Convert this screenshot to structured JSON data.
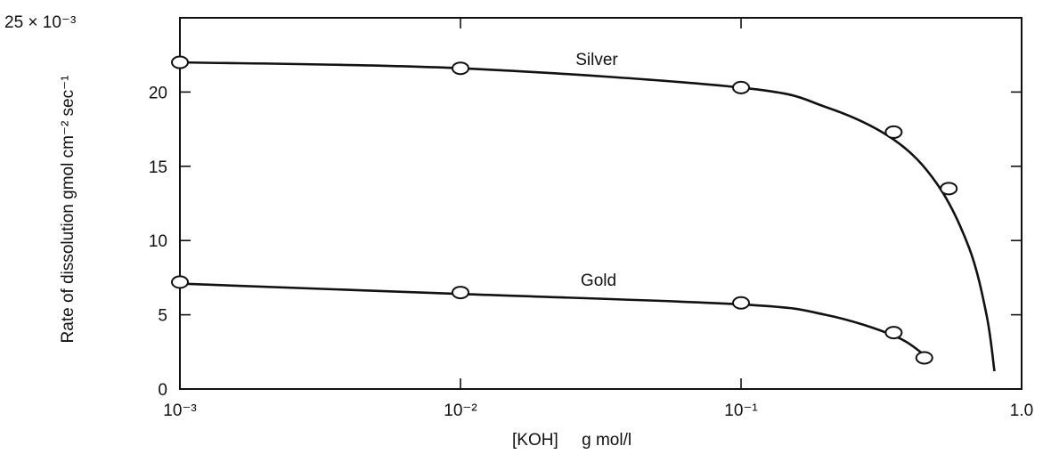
{
  "chart_data": {
    "type": "line",
    "title": "",
    "xlabel": "[KOH]     g mol/l",
    "ylabel": "Rate of dissolution gmol cm⁻² sec⁻¹",
    "y_multiplier_label": "25  ×  10⁻³",
    "x_scale": "log",
    "xlim": [
      0.001,
      1.0
    ],
    "ylim": [
      0,
      25
    ],
    "x_ticks": [
      0.001,
      0.01,
      0.1,
      1.0
    ],
    "x_tick_labels": [
      "10⁻³",
      "10⁻²",
      "10⁻¹",
      "1.0"
    ],
    "y_ticks": [
      0,
      5,
      10,
      15,
      20
    ],
    "y_tick_labels": [
      "0",
      "5",
      "10",
      "15",
      "20"
    ],
    "grid": false,
    "series": [
      {
        "name": "Silver",
        "points": [
          {
            "x": 0.001,
            "y": 22.0
          },
          {
            "x": 0.01,
            "y": 21.6
          },
          {
            "x": 0.1,
            "y": 20.3
          },
          {
            "x": 0.35,
            "y": 17.3
          },
          {
            "x": 0.55,
            "y": 13.5
          }
        ],
        "curve": [
          {
            "x": 0.001,
            "y": 22.0
          },
          {
            "x": 0.01,
            "y": 21.6
          },
          {
            "x": 0.1,
            "y": 20.3
          },
          {
            "x": 0.2,
            "y": 19.0
          },
          {
            "x": 0.35,
            "y": 16.8
          },
          {
            "x": 0.5,
            "y": 13.8
          },
          {
            "x": 0.65,
            "y": 9.5
          },
          {
            "x": 0.75,
            "y": 5.0
          },
          {
            "x": 0.8,
            "y": 1.2
          }
        ]
      },
      {
        "name": "Gold",
        "points": [
          {
            "x": 0.001,
            "y": 7.2
          },
          {
            "x": 0.01,
            "y": 6.5
          },
          {
            "x": 0.1,
            "y": 5.8
          },
          {
            "x": 0.35,
            "y": 3.8
          },
          {
            "x": 0.45,
            "y": 2.1
          }
        ],
        "curve": [
          {
            "x": 0.001,
            "y": 7.1
          },
          {
            "x": 0.01,
            "y": 6.4
          },
          {
            "x": 0.1,
            "y": 5.7
          },
          {
            "x": 0.2,
            "y": 5.0
          },
          {
            "x": 0.35,
            "y": 3.6
          },
          {
            "x": 0.45,
            "y": 2.3
          }
        ]
      }
    ]
  }
}
